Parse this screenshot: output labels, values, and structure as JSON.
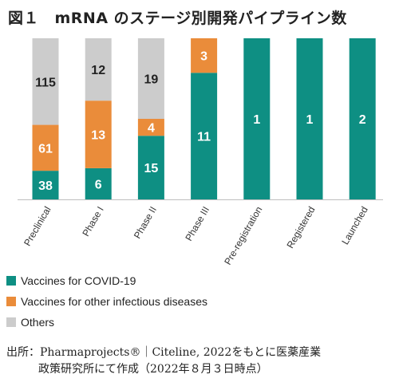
{
  "title": "図１　mRNA のステージ別開発パイプライン数",
  "chart_data": {
    "type": "bar",
    "stacked": true,
    "categories": [
      "Preclinical",
      "Phase I",
      "Phase II",
      "Phase III",
      "Pre-registration",
      "Registered",
      "Launched"
    ],
    "series": [
      {
        "name": "Vaccines for COVID-19",
        "color": "#0e8f83",
        "values": [
          38,
          6,
          15,
          11,
          1,
          1,
          2
        ]
      },
      {
        "name": "Vaccines for other infectious diseases",
        "color": "#ea8c3a",
        "values": [
          61,
          13,
          4,
          3,
          0,
          0,
          0
        ]
      },
      {
        "name": "Others",
        "color": "#cccccc",
        "values": [
          115,
          12,
          19,
          0,
          0,
          0,
          0
        ]
      }
    ],
    "display": "normalized-to-100-percent",
    "yaxis_visible": false,
    "legend_position": "bottom-left"
  },
  "source": {
    "line1": "出所：Pharmaprojects®｜Citeline, 2022をもとに医薬産業",
    "line2": "政策研究所にて作成（2022年８月３日時点）"
  }
}
